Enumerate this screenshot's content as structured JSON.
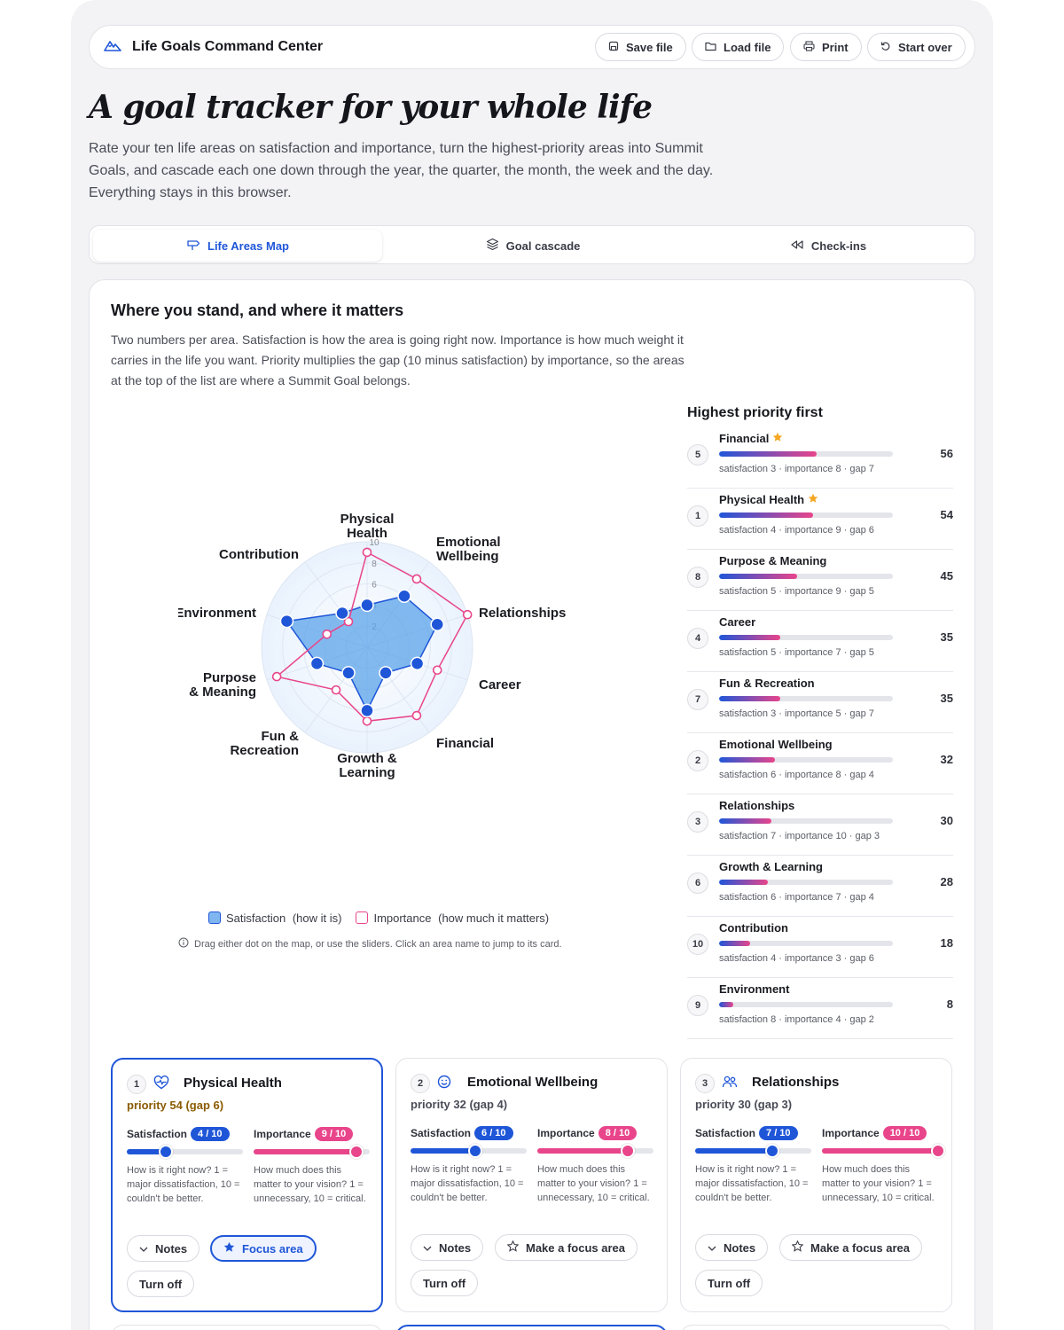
{
  "header": {
    "title": "Life Goals Command Center",
    "buttons": [
      {
        "label": "Save file",
        "icon": "save-icon"
      },
      {
        "label": "Load file",
        "icon": "folder-icon"
      },
      {
        "label": "Print",
        "icon": "printer-icon"
      },
      {
        "label": "Start over",
        "icon": "undo-icon"
      }
    ]
  },
  "hero": {
    "title": "A goal tracker for your whole life",
    "subtitle": "Rate your ten life areas on satisfaction and importance, turn the highest-priority areas into Summit Goals, and cascade each one down through the year, the quarter, the month, the week and the day. Everything stays in this browser."
  },
  "tabs": [
    {
      "label": "Life Areas Map",
      "active": true,
      "icon": "signpost-icon"
    },
    {
      "label": "Goal cascade",
      "active": false,
      "icon": "layers-icon"
    },
    {
      "label": "Check-ins",
      "active": false,
      "icon": "rewind-icon"
    }
  ],
  "section": {
    "title": "Where you stand, and where it matters",
    "description": "Two numbers per area. Satisfaction is how the area is going right now. Importance is how much weight it carries in the life you want. Priority multiplies the gap (10 minus satisfaction) by importance, so the areas at the top of the list are where a Summit Goal belongs."
  },
  "radar": {
    "axes": [
      "Physical Health",
      "Emotional Wellbeing",
      "Relationships",
      "Career",
      "Financial",
      "Growth & Learning",
      "Fun & Recreation",
      "Purpose & Meaning",
      "Environment",
      "Contribution"
    ],
    "satisfaction": [
      4,
      6,
      7,
      5,
      3,
      6,
      3,
      5,
      8,
      4
    ],
    "importance": [
      9,
      8,
      10,
      7,
      8,
      7,
      5,
      9,
      4,
      3
    ],
    "ticks": [
      "2",
      "4",
      "6",
      "8",
      "10"
    ],
    "colors": {
      "satisfaction": "#1f56d8",
      "importance": "#e8458b"
    }
  },
  "legend": {
    "satisfaction": "Satisfaction",
    "satisfaction_note": "(how it is)",
    "importance": "Importance",
    "importance_note": "(how much it matters)"
  },
  "hint": "Drag either dot on the map, or use the sliders. Click an area name to jump to its card.",
  "priority": {
    "title": "Highest priority first",
    "items": [
      {
        "num": "5",
        "name": "Financial",
        "star": true,
        "score": "56",
        "meta": "satisfaction 3 · importance 8 · gap 7",
        "fill": 0.56
      },
      {
        "num": "1",
        "name": "Physical Health",
        "star": true,
        "score": "54",
        "meta": "satisfaction 4 · importance 9 · gap 6",
        "fill": 0.54
      },
      {
        "num": "8",
        "name": "Purpose & Meaning",
        "star": false,
        "score": "45",
        "meta": "satisfaction 5 · importance 9 · gap 5",
        "fill": 0.45
      },
      {
        "num": "4",
        "name": "Career",
        "star": false,
        "score": "35",
        "meta": "satisfaction 5 · importance 7 · gap 5",
        "fill": 0.35
      },
      {
        "num": "7",
        "name": "Fun & Recreation",
        "star": false,
        "score": "35",
        "meta": "satisfaction 3 · importance 5 · gap 7",
        "fill": 0.35
      },
      {
        "num": "2",
        "name": "Emotional Wellbeing",
        "star": false,
        "score": "32",
        "meta": "satisfaction 6 · importance 8 · gap 4",
        "fill": 0.32
      },
      {
        "num": "3",
        "name": "Relationships",
        "star": false,
        "score": "30",
        "meta": "satisfaction 7 · importance 10 · gap 3",
        "fill": 0.3
      },
      {
        "num": "6",
        "name": "Growth & Learning",
        "star": false,
        "score": "28",
        "meta": "satisfaction 6 · importance 7 · gap 4",
        "fill": 0.28
      },
      {
        "num": "10",
        "name": "Contribution",
        "star": false,
        "score": "18",
        "meta": "satisfaction 4 · importance 3 · gap 6",
        "fill": 0.18
      },
      {
        "num": "9",
        "name": "Environment",
        "star": false,
        "score": "8",
        "meta": "satisfaction 8 · importance 4 · gap 2",
        "fill": 0.08
      }
    ]
  },
  "cards": [
    {
      "num": "1",
      "icon": "heart-pulse-icon",
      "name": "Physical Health",
      "priority": "priority 54 (gap 6)",
      "top": true,
      "focus": true,
      "sat_label": "Satisfaction",
      "sat_value": "4 / 10",
      "sat": 4,
      "imp_label": "Importance",
      "imp_value": "9 / 10",
      "imp": 9,
      "sat_help": "How is it right now? 1 = major dissatisfaction, 10 = couldn't be better.",
      "imp_help": "How much does this matter to your vision? 1 = unnecessary, 10 = critical.",
      "notes": "Notes",
      "focus_label": "Focus area",
      "off": "Turn off"
    },
    {
      "num": "2",
      "icon": "smile-icon",
      "name": "Emotional Wellbeing",
      "priority": "priority 32 (gap 4)",
      "top": false,
      "focus": false,
      "sat_label": "Satisfaction",
      "sat_value": "6 / 10",
      "sat": 6,
      "imp_label": "Importance",
      "imp_value": "8 / 10",
      "imp": 8,
      "sat_help": "How is it right now? 1 = major dissatisfaction, 10 = couldn't be better.",
      "imp_help": "How much does this matter to your vision? 1 = unnecessary, 10 = critical.",
      "notes": "Notes",
      "focus_label": "Make a focus area",
      "off": "Turn off"
    },
    {
      "num": "3",
      "icon": "people-icon",
      "name": "Relationships",
      "priority": "priority 30 (gap 3)",
      "top": false,
      "focus": false,
      "sat_label": "Satisfaction",
      "sat_value": "7 / 10",
      "sat": 7,
      "imp_label": "Importance",
      "imp_value": "10 / 10",
      "imp": 10,
      "sat_help": "How is it right now? 1 = major dissatisfaction, 10 = couldn't be better.",
      "imp_help": "How much does this matter to your vision? 1 = unnecessary, 10 = critical.",
      "notes": "Notes",
      "focus_label": "Make a focus area",
      "off": "Turn off"
    }
  ]
}
